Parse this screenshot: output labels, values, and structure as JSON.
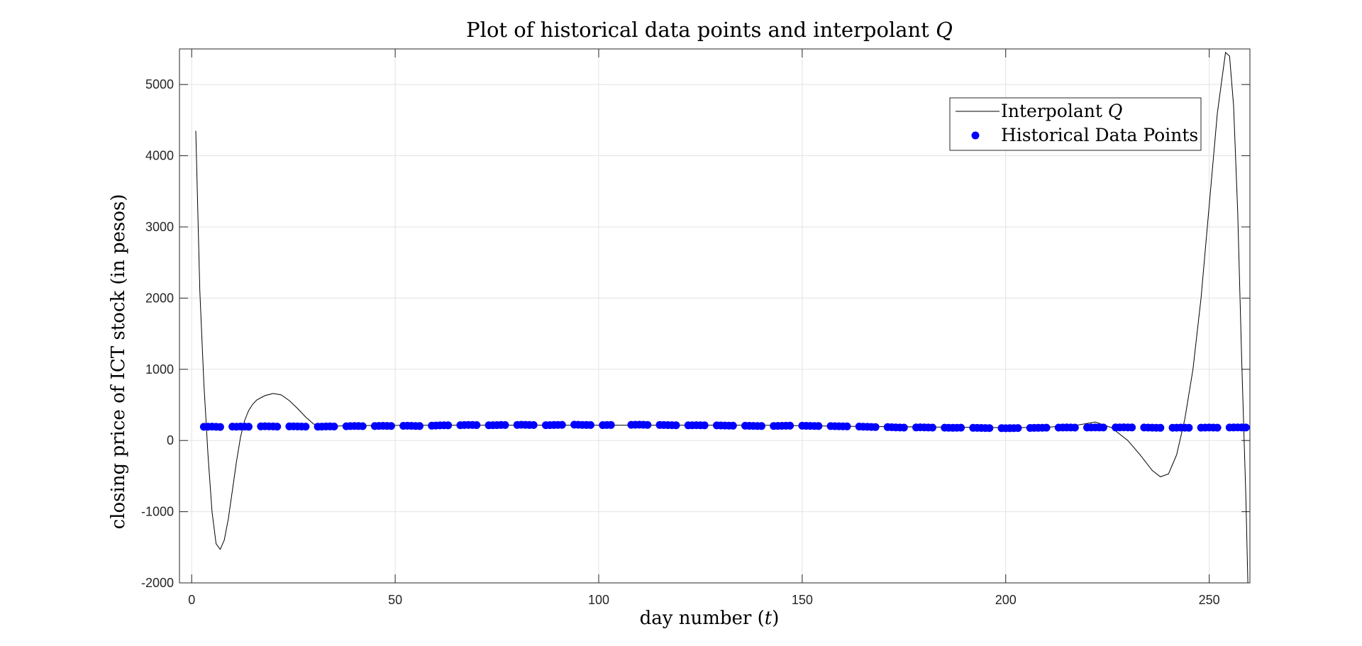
{
  "chart_data": {
    "type": "scatter",
    "title": "Plot of historical data points and interpolant Q",
    "title_math_symbol": "Q",
    "xlabel": "day number (t)",
    "ylabel": "closing price of ICT stock (in pesos)",
    "xlim": [
      -3,
      260
    ],
    "ylim": [
      -2000,
      5500
    ],
    "xticks": [
      0,
      50,
      100,
      150,
      200,
      250
    ],
    "yticks": [
      -2000,
      -1000,
      0,
      1000,
      2000,
      3000,
      4000,
      5000
    ],
    "grid": true,
    "legend_position": "top-right",
    "series": [
      {
        "name": "Interpolant Q",
        "kind": "line",
        "color": "#000000",
        "points": [
          [
            1,
            4350
          ],
          [
            2,
            2100
          ],
          [
            3,
            800
          ],
          [
            4,
            -200
          ],
          [
            5,
            -1000
          ],
          [
            6,
            -1450
          ],
          [
            7,
            -1530
          ],
          [
            8,
            -1400
          ],
          [
            9,
            -1100
          ],
          [
            10,
            -700
          ],
          [
            11,
            -300
          ],
          [
            12,
            50
          ],
          [
            13,
            280
          ],
          [
            14,
            420
          ],
          [
            15,
            510
          ],
          [
            16,
            570
          ],
          [
            18,
            630
          ],
          [
            20,
            660
          ],
          [
            22,
            640
          ],
          [
            24,
            560
          ],
          [
            26,
            450
          ],
          [
            28,
            330
          ],
          [
            30,
            230
          ],
          [
            34,
            200
          ],
          [
            40,
            210
          ],
          [
            60,
            215
          ],
          [
            80,
            215
          ],
          [
            100,
            215
          ],
          [
            120,
            215
          ],
          [
            140,
            215
          ],
          [
            160,
            200
          ],
          [
            180,
            190
          ],
          [
            200,
            180
          ],
          [
            210,
            185
          ],
          [
            218,
            220
          ],
          [
            222,
            260
          ],
          [
            226,
            180
          ],
          [
            230,
            0
          ],
          [
            233,
            -200
          ],
          [
            236,
            -420
          ],
          [
            238,
            -510
          ],
          [
            240,
            -470
          ],
          [
            242,
            -200
          ],
          [
            244,
            300
          ],
          [
            246,
            1000
          ],
          [
            248,
            2000
          ],
          [
            250,
            3300
          ],
          [
            252,
            4600
          ],
          [
            254,
            5450
          ],
          [
            255,
            5400
          ],
          [
            256,
            4700
          ],
          [
            257,
            3200
          ],
          [
            258,
            1100
          ],
          [
            259,
            -800
          ],
          [
            259.5,
            -2000
          ]
        ]
      },
      {
        "name": "Historical Data Points",
        "kind": "scatter",
        "color": "#0000ff",
        "points": [
          [
            3,
            192
          ],
          [
            4,
            194
          ],
          [
            5,
            195
          ],
          [
            6,
            192
          ],
          [
            7,
            190
          ],
          [
            10,
            195
          ],
          [
            11,
            194
          ],
          [
            12,
            196
          ],
          [
            13,
            195
          ],
          [
            14,
            193
          ],
          [
            17,
            198
          ],
          [
            18,
            200
          ],
          [
            19,
            199
          ],
          [
            20,
            197
          ],
          [
            21,
            195
          ],
          [
            24,
            198
          ],
          [
            25,
            199
          ],
          [
            26,
            197
          ],
          [
            27,
            196
          ],
          [
            28,
            195
          ],
          [
            31,
            194
          ],
          [
            32,
            195
          ],
          [
            33,
            197
          ],
          [
            34,
            198
          ],
          [
            35,
            196
          ],
          [
            38,
            200
          ],
          [
            39,
            202
          ],
          [
            40,
            204
          ],
          [
            41,
            203
          ],
          [
            42,
            201
          ],
          [
            45,
            203
          ],
          [
            46,
            205
          ],
          [
            47,
            206
          ],
          [
            48,
            205
          ],
          [
            49,
            204
          ],
          [
            52,
            206
          ],
          [
            53,
            207
          ],
          [
            54,
            206
          ],
          [
            55,
            204
          ],
          [
            56,
            203
          ],
          [
            59,
            208
          ],
          [
            60,
            210
          ],
          [
            61,
            212
          ],
          [
            62,
            214
          ],
          [
            63,
            213
          ],
          [
            66,
            215
          ],
          [
            67,
            217
          ],
          [
            68,
            219
          ],
          [
            69,
            218
          ],
          [
            70,
            216
          ],
          [
            73,
            214
          ],
          [
            74,
            215
          ],
          [
            75,
            216
          ],
          [
            76,
            218
          ],
          [
            77,
            217
          ],
          [
            80,
            219
          ],
          [
            81,
            221
          ],
          [
            82,
            220
          ],
          [
            83,
            218
          ],
          [
            84,
            217
          ],
          [
            87,
            215
          ],
          [
            88,
            216
          ],
          [
            89,
            218
          ],
          [
            90,
            219
          ],
          [
            91,
            220
          ],
          [
            94,
            222
          ],
          [
            95,
            221
          ],
          [
            96,
            219
          ],
          [
            97,
            218
          ],
          [
            98,
            217
          ],
          [
            101,
            216
          ],
          [
            102,
            217
          ],
          [
            103,
            218
          ],
          [
            108,
            220
          ],
          [
            109,
            221
          ],
          [
            110,
            222
          ],
          [
            111,
            221
          ],
          [
            112,
            219
          ],
          [
            115,
            218
          ],
          [
            116,
            217
          ],
          [
            117,
            216
          ],
          [
            118,
            215
          ],
          [
            119,
            214
          ],
          [
            122,
            213
          ],
          [
            123,
            214
          ],
          [
            124,
            215
          ],
          [
            125,
            214
          ],
          [
            126,
            213
          ],
          [
            129,
            212
          ],
          [
            130,
            211
          ],
          [
            131,
            210
          ],
          [
            132,
            209
          ],
          [
            133,
            208
          ],
          [
            136,
            207
          ],
          [
            137,
            206
          ],
          [
            138,
            205
          ],
          [
            139,
            204
          ],
          [
            140,
            203
          ],
          [
            143,
            204
          ],
          [
            144,
            205
          ],
          [
            145,
            206
          ],
          [
            146,
            207
          ],
          [
            147,
            208
          ],
          [
            150,
            207
          ],
          [
            151,
            206
          ],
          [
            152,
            205
          ],
          [
            153,
            204
          ],
          [
            154,
            203
          ],
          [
            157,
            202
          ],
          [
            158,
            201
          ],
          [
            159,
            200
          ],
          [
            160,
            199
          ],
          [
            161,
            198
          ],
          [
            164,
            196
          ],
          [
            165,
            194
          ],
          [
            166,
            192
          ],
          [
            167,
            190
          ],
          [
            168,
            189
          ],
          [
            171,
            188
          ],
          [
            172,
            186
          ],
          [
            173,
            184
          ],
          [
            174,
            182
          ],
          [
            175,
            181
          ],
          [
            178,
            183
          ],
          [
            179,
            185
          ],
          [
            180,
            184
          ],
          [
            181,
            182
          ],
          [
            182,
            181
          ],
          [
            185,
            180
          ],
          [
            186,
            179
          ],
          [
            187,
            178
          ],
          [
            188,
            179
          ],
          [
            189,
            180
          ],
          [
            192,
            178
          ],
          [
            193,
            177
          ],
          [
            194,
            176
          ],
          [
            195,
            175
          ],
          [
            196,
            174
          ],
          [
            199,
            173
          ],
          [
            200,
            172
          ],
          [
            201,
            173
          ],
          [
            202,
            174
          ],
          [
            203,
            175
          ],
          [
            206,
            176
          ],
          [
            207,
            177
          ],
          [
            208,
            178
          ],
          [
            209,
            179
          ],
          [
            210,
            180
          ],
          [
            213,
            181
          ],
          [
            214,
            182
          ],
          [
            215,
            183
          ],
          [
            216,
            182
          ],
          [
            217,
            181
          ],
          [
            220,
            182
          ],
          [
            221,
            183
          ],
          [
            222,
            184
          ],
          [
            223,
            183
          ],
          [
            224,
            182
          ],
          [
            227,
            183
          ],
          [
            228,
            184
          ],
          [
            229,
            185
          ],
          [
            230,
            184
          ],
          [
            231,
            183
          ],
          [
            234,
            182
          ],
          [
            235,
            181
          ],
          [
            236,
            180
          ],
          [
            237,
            179
          ],
          [
            238,
            178
          ],
          [
            241,
            179
          ],
          [
            242,
            180
          ],
          [
            243,
            181
          ],
          [
            244,
            180
          ],
          [
            245,
            179
          ],
          [
            248,
            180
          ],
          [
            249,
            181
          ],
          [
            250,
            182
          ],
          [
            251,
            181
          ],
          [
            252,
            180
          ],
          [
            255,
            182
          ],
          [
            256,
            183
          ],
          [
            257,
            184
          ],
          [
            258,
            183
          ],
          [
            259,
            182
          ]
        ]
      }
    ]
  }
}
